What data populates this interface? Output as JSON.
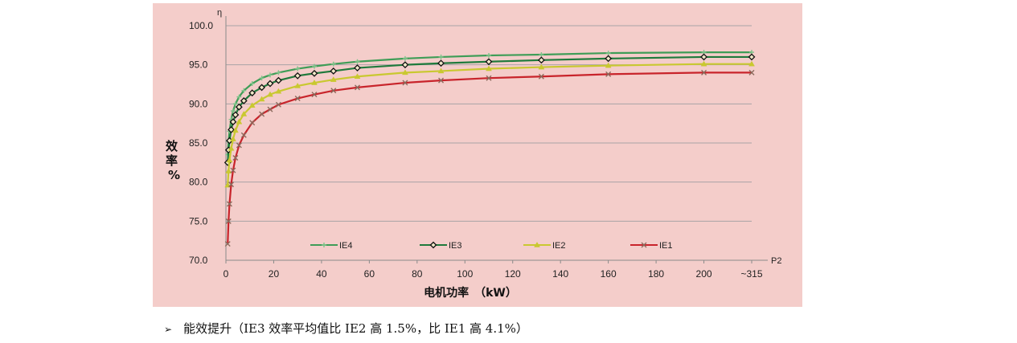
{
  "chart_data": {
    "type": "line",
    "x_axis_label": "P2",
    "y_axis_label": "η",
    "ylabel_vertical": [
      "效",
      "率",
      "%"
    ],
    "xlabel": "电机功率　（kW）",
    "ylim": [
      70.0,
      100.0
    ],
    "y_ticks": [
      "70.0",
      "75.0",
      "80.0",
      "85.0",
      "90.0",
      "95.0",
      "100.0"
    ],
    "y_tick_values": [
      70,
      75,
      80,
      85,
      90,
      95,
      100
    ],
    "x_ticks": [
      "0",
      "20",
      "40",
      "60",
      "80",
      "100",
      "120",
      "140",
      "160",
      "180",
      "200",
      "~315"
    ],
    "x_tick_values": [
      0,
      20,
      40,
      60,
      80,
      100,
      120,
      140,
      160,
      180,
      200,
      220
    ],
    "grid": "horizontal",
    "legend_position": "bottom",
    "series": [
      {
        "name": "IE4",
        "color": "#3f9d57",
        "marker": "plus",
        "x": [
          0.75,
          1.1,
          1.5,
          2.2,
          3,
          4,
          5.5,
          7.5,
          11,
          15,
          18.5,
          22,
          30,
          37,
          45,
          55,
          75,
          90,
          110,
          132,
          160,
          200,
          220
        ],
        "y": [
          83.5,
          85.2,
          86.5,
          88.0,
          89.1,
          90.0,
          90.9,
          91.7,
          92.6,
          93.3,
          93.7,
          94.0,
          94.5,
          94.8,
          95.1,
          95.4,
          95.8,
          96.0,
          96.2,
          96.3,
          96.5,
          96.6,
          96.6
        ]
      },
      {
        "name": "IE3",
        "color": "#1f7a3c",
        "marker": "diamond",
        "x": [
          0.75,
          1.1,
          1.5,
          2.2,
          3,
          4,
          5.5,
          7.5,
          11,
          15,
          18.5,
          22,
          30,
          37,
          45,
          55,
          75,
          90,
          110,
          132,
          160,
          200,
          220
        ],
        "y": [
          82.5,
          84.1,
          85.3,
          86.7,
          87.7,
          88.6,
          89.6,
          90.4,
          91.4,
          92.1,
          92.6,
          93.0,
          93.6,
          93.9,
          94.2,
          94.6,
          95.0,
          95.2,
          95.4,
          95.6,
          95.8,
          96.0,
          96.0
        ]
      },
      {
        "name": "IE2",
        "color": "#c9c830",
        "marker": "triangle",
        "x": [
          0.75,
          1.1,
          1.5,
          2.2,
          3,
          4,
          5.5,
          7.5,
          11,
          15,
          18.5,
          22,
          30,
          37,
          45,
          55,
          75,
          90,
          110,
          132,
          160,
          200,
          220
        ],
        "y": [
          79.6,
          81.4,
          82.8,
          84.3,
          85.5,
          86.6,
          87.7,
          88.7,
          89.8,
          90.6,
          91.2,
          91.6,
          92.3,
          92.7,
          93.1,
          93.5,
          94.0,
          94.2,
          94.5,
          94.7,
          94.9,
          95.1,
          95.1
        ]
      },
      {
        "name": "IE1",
        "color": "#c8242b",
        "marker": "x",
        "x": [
          0.75,
          1.1,
          1.5,
          2.2,
          3,
          4,
          5.5,
          7.5,
          11,
          15,
          18.5,
          22,
          30,
          37,
          45,
          55,
          75,
          90,
          110,
          132,
          160,
          200,
          220
        ],
        "y": [
          72.1,
          75.0,
          77.2,
          79.7,
          81.5,
          83.1,
          84.7,
          86.0,
          87.6,
          88.7,
          89.3,
          89.9,
          90.7,
          91.2,
          91.7,
          92.1,
          92.7,
          93.0,
          93.3,
          93.5,
          93.8,
          94.0,
          94.0
        ]
      }
    ]
  },
  "caption": {
    "bullet": "➢",
    "text": "能效提升（IE3 效率平均值比 IE2 高 1.5%，比 IE1 高 4.1%）"
  }
}
